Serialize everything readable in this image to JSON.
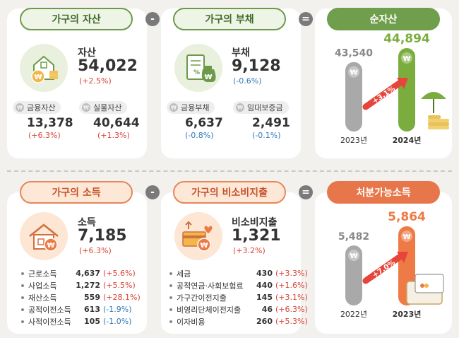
{
  "top": {
    "assets": {
      "title": "가구의 자산",
      "label": "자산",
      "value": "54,022",
      "change": "(+2.5%)",
      "sub": [
        {
          "label": "금융자산",
          "value": "13,378",
          "change": "(+6.3%)"
        },
        {
          "label": "실물자산",
          "value": "40,644",
          "change": "(+1.3%)"
        }
      ]
    },
    "op_minus": "-",
    "debt": {
      "title": "가구의 부채",
      "label": "부채",
      "value": "9,128",
      "change": "(-0.6%)",
      "sub": [
        {
          "label": "금융부채",
          "value": "6,637",
          "change": "(-0.8%)"
        },
        {
          "label": "임대보증금",
          "value": "2,491",
          "change": "(-0.1%)"
        }
      ]
    },
    "op_equals": "=",
    "net": {
      "title": "순자산",
      "chart_data": {
        "type": "bar",
        "categories": [
          "2023년",
          "2024년"
        ],
        "values": [
          43540,
          44894
        ],
        "value_labels": [
          "43,540",
          "44,894"
        ],
        "growth": "+3.1%",
        "colors": [
          "#a9a9a9",
          "#7aad3e"
        ]
      }
    }
  },
  "bottom": {
    "income": {
      "title": "가구의 소득",
      "label": "소득",
      "value": "7,185",
      "change": "(+6.3%)",
      "items": [
        {
          "name": "근로소득",
          "value": "4,637",
          "change": "(+5.6%)"
        },
        {
          "name": "사업소득",
          "value": "1,272",
          "change": "(+5.5%)"
        },
        {
          "name": "재산소득",
          "value": "559",
          "change": "(+28.1%)"
        },
        {
          "name": "공적이전소득",
          "value": "613",
          "change": "(-1.9%)"
        },
        {
          "name": "사적이전소득",
          "value": "105",
          "change": "(-1.0%)"
        }
      ]
    },
    "op_minus": "-",
    "nonconsumption": {
      "title": "가구의 비소비지출",
      "label": "비소비지출",
      "value": "1,321",
      "change": "(+3.2%)",
      "items": [
        {
          "name": "세금",
          "value": "430",
          "change": "(+3.3%)"
        },
        {
          "name": "공적연금·사회보험료",
          "value": "440",
          "change": "(+1.6%)"
        },
        {
          "name": "가구간이전지출",
          "value": "145",
          "change": "(+3.1%)"
        },
        {
          "name": "비영리단체이전지출",
          "value": "46",
          "change": "(+6.3%)"
        },
        {
          "name": "이자비용",
          "value": "260",
          "change": "(+5.3%)"
        }
      ]
    },
    "op_equals": "=",
    "disposable": {
      "title": "처분가능소득",
      "chart_data": {
        "type": "bar",
        "categories": [
          "2022년",
          "2023년"
        ],
        "values": [
          5482,
          5864
        ],
        "value_labels": [
          "5,482",
          "5,864"
        ],
        "growth": "+7.0%",
        "colors": [
          "#a9a9a9",
          "#ee7a45"
        ]
      }
    }
  }
}
